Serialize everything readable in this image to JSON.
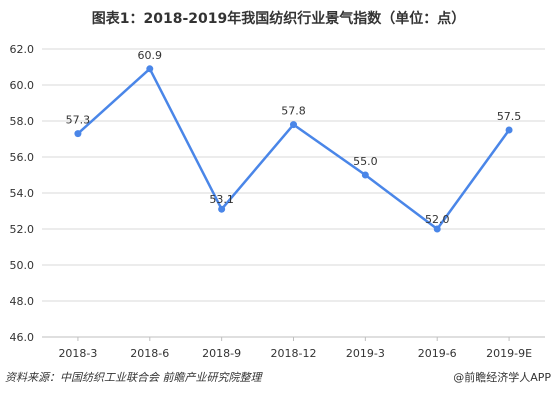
{
  "chart_data": {
    "type": "line",
    "title": "图表1：2018-2019年我国纺织行业景气指数（单位：点）",
    "categories": [
      "2018-3",
      "2018-6",
      "2018-9",
      "2018-12",
      "2019-3",
      "2019-6",
      "2019-9E"
    ],
    "series": [
      {
        "values": [
          57.3,
          60.9,
          53.1,
          57.8,
          55.0,
          52.0,
          57.5
        ],
        "color": "#4a86e8"
      }
    ],
    "value_labels": [
      "57.3",
      "60.9",
      "53.1",
      "57.8",
      "55.0",
      "52.0",
      "57.5"
    ],
    "y_ticks": [
      "46.0",
      "48.0",
      "50.0",
      "52.0",
      "54.0",
      "56.0",
      "58.0",
      "60.0",
      "62.0"
    ],
    "ylim": [
      46,
      62
    ],
    "grid": true,
    "legend": "none"
  },
  "footer": {
    "source": "资料来源：中国纺织工业联合会 前瞻产业研究院整理",
    "brand": "@前瞻经济学人APP"
  },
  "colors": {
    "line": "#4a86e8",
    "grid": "#d9d9d9",
    "text": "#333333"
  }
}
